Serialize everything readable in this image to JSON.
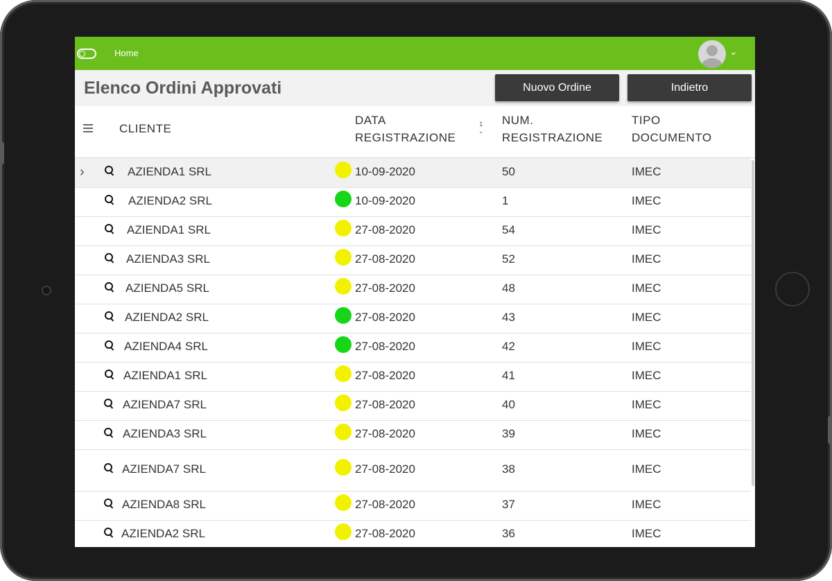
{
  "colors": {
    "topbar": "#6bbf1d",
    "button_bg": "#3a3a3a",
    "status_yellow": "#f2f200",
    "status_green": "#17d617"
  },
  "topbar": {
    "home_label": "Home",
    "toggle_icon": "toggle-icon",
    "avatar_icon": "user-avatar-icon",
    "dropdown_icon": "chevron-down-icon"
  },
  "header": {
    "title": "Elenco Ordini Approvati",
    "new_order_label": "Nuovo Ordine",
    "back_label": "Indietro"
  },
  "table": {
    "columns": {
      "cliente": "CLIENTE",
      "data_line1": "DATA",
      "data_line2": "REGISTRAZIONE",
      "num_line1": "NUM.",
      "num_line2": "REGISTRAZIONE",
      "tipo_line1": "TIPO",
      "tipo_line2": "DOCUMENTO",
      "sort_index": "1"
    },
    "rows": [
      {
        "cliente": "AZIENDA1 SRL",
        "status": "yellow",
        "data": "10-09-2020",
        "num": "50",
        "tipo": "IMEC",
        "selected": true
      },
      {
        "cliente": "AZIENDA2 SRL",
        "status": "green",
        "data": "10-09-2020",
        "num": "1",
        "tipo": "IMEC"
      },
      {
        "cliente": "AZIENDA1 SRL",
        "status": "yellow",
        "data": "27-08-2020",
        "num": "54",
        "tipo": "IMEC"
      },
      {
        "cliente": "AZIENDA3 SRL",
        "status": "yellow",
        "data": "27-08-2020",
        "num": "52",
        "tipo": "IMEC"
      },
      {
        "cliente": "AZIENDA5 SRL",
        "status": "yellow",
        "data": "27-08-2020",
        "num": "48",
        "tipo": "IMEC"
      },
      {
        "cliente": "AZIENDA2 SRL",
        "status": "green",
        "data": "27-08-2020",
        "num": "43",
        "tipo": "IMEC"
      },
      {
        "cliente": "AZIENDA4 SRL",
        "status": "green",
        "data": "27-08-2020",
        "num": "42",
        "tipo": "IMEC"
      },
      {
        "cliente": "AZIENDA1 SRL",
        "status": "yellow",
        "data": "27-08-2020",
        "num": "41",
        "tipo": "IMEC"
      },
      {
        "cliente": "AZIENDA7 SRL",
        "status": "yellow",
        "data": "27-08-2020",
        "num": "40",
        "tipo": "IMEC"
      },
      {
        "cliente": "AZIENDA3 SRL",
        "status": "yellow",
        "data": "27-08-2020",
        "num": "39",
        "tipo": "IMEC"
      },
      {
        "cliente": "AZIENDA7 SRL",
        "status": "yellow",
        "data": "27-08-2020",
        "num": "38",
        "tipo": "IMEC"
      },
      {
        "cliente": "AZIENDA8 SRL",
        "status": "yellow",
        "data": "27-08-2020",
        "num": "37",
        "tipo": "IMEC"
      },
      {
        "cliente": "AZIENDA2 SRL",
        "status": "yellow",
        "data": "27-08-2020",
        "num": "36",
        "tipo": "IMEC"
      }
    ]
  }
}
